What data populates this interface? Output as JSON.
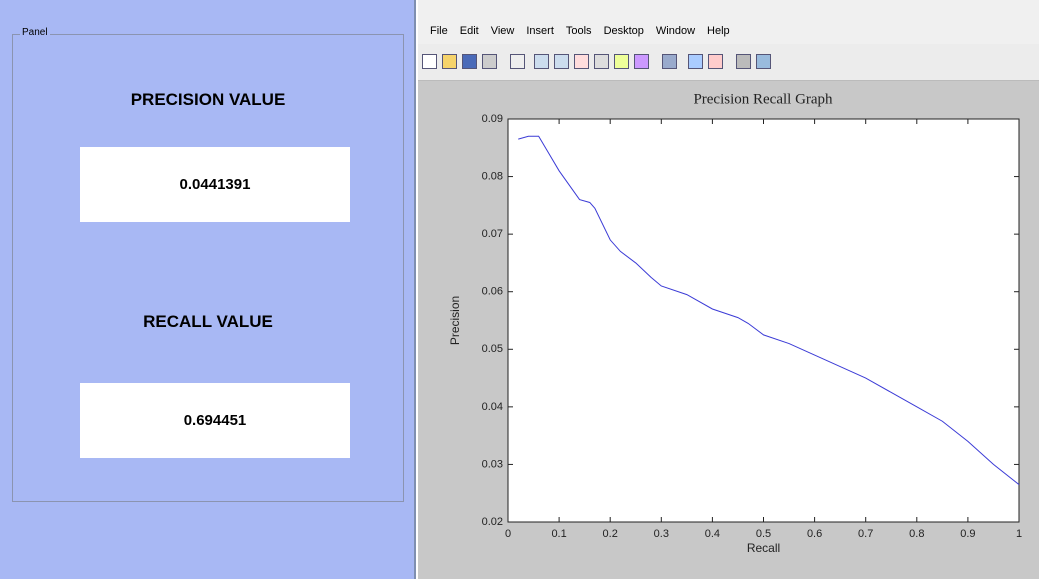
{
  "panel": {
    "title": "Panel",
    "precision_label": "PRECISION VALUE",
    "precision_value": 0.0441391,
    "recall_label": "RECALL VALUE",
    "recall_value": 0.694451
  },
  "menu": [
    "File",
    "Edit",
    "View",
    "Insert",
    "Tools",
    "Desktop",
    "Window",
    "Help"
  ],
  "chart_data": {
    "type": "line",
    "title": "Precision Recall Graph",
    "x_label": "Recall",
    "y_label": "Precision",
    "x": [
      0.02,
      0.04,
      0.06,
      0.08,
      0.1,
      0.12,
      0.14,
      0.16,
      0.17,
      0.2,
      0.22,
      0.25,
      0.28,
      0.3,
      0.35,
      0.4,
      0.45,
      0.47,
      0.5,
      0.55,
      0.6,
      0.65,
      0.7,
      0.75,
      0.8,
      0.85,
      0.9,
      0.95,
      1
    ],
    "values": [
      0.0865,
      0.087,
      0.087,
      0.084,
      0.081,
      0.0785,
      0.076,
      0.0755,
      0.0745,
      0.069,
      0.067,
      0.065,
      0.0625,
      0.061,
      0.0595,
      0.057,
      0.0555,
      0.0545,
      0.0525,
      0.051,
      0.049,
      0.047,
      0.045,
      0.0425,
      0.04,
      0.0375,
      0.034,
      0.03,
      0.0265
    ],
    "color": "#3b3bd6",
    "xlim": [
      0,
      1
    ],
    "xticks": [
      0,
      0.1,
      0.2,
      0.3,
      0.4,
      0.5,
      0.6,
      0.7,
      0.8,
      0.9,
      1
    ],
    "ylim": [
      0.02,
      0.09
    ],
    "yticks": [
      0.02,
      0.03,
      0.04,
      0.05,
      0.06,
      0.07,
      0.08,
      0.09
    ]
  }
}
